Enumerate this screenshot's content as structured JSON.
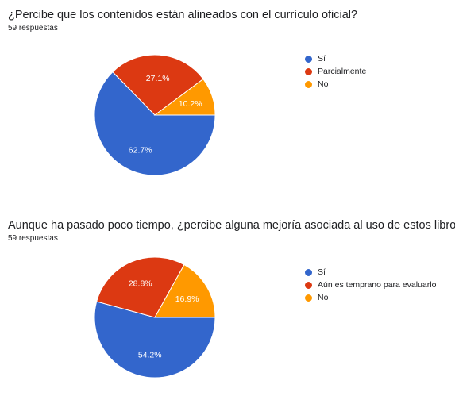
{
  "chart_data": [
    {
      "type": "pie",
      "title": "¿Percibe que los contenidos están alineados con el currículo oficial?",
      "subtitle": "59 respuestas",
      "categories": [
        "Sí",
        "Parcialmente",
        "No"
      ],
      "values": [
        62.7,
        27.1,
        10.2
      ],
      "labels": [
        "62.7%",
        "27.1%",
        "10.2%"
      ],
      "colors": [
        "#3366cc",
        "#dc3912",
        "#ff9900"
      ],
      "legend_position": "right"
    },
    {
      "type": "pie",
      "title": "Aunque ha pasado poco tiempo, ¿percibe alguna mejoría asociada al uso de estos libros?",
      "subtitle": "59 respuestas",
      "categories": [
        "Sí",
        "Aún es temprano para evaluarlo",
        "No"
      ],
      "values": [
        54.2,
        28.8,
        16.9
      ],
      "labels": [
        "54.2%",
        "28.8%",
        "16.9%"
      ],
      "colors": [
        "#3366cc",
        "#dc3912",
        "#ff9900"
      ],
      "legend_position": "right"
    }
  ]
}
